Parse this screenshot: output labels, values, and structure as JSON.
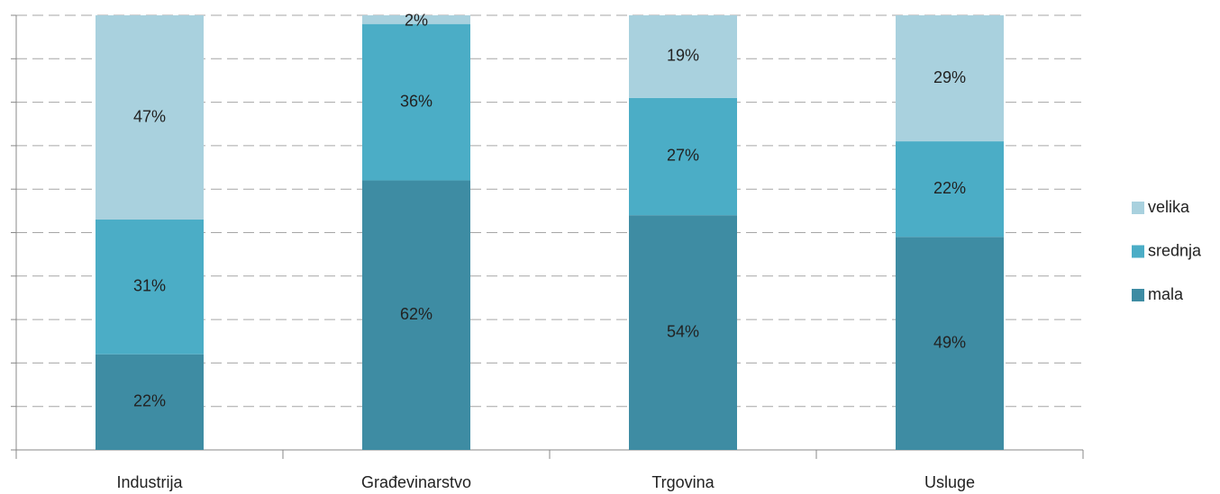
{
  "chart_data": {
    "type": "stacked_bar",
    "categories": [
      "Industrija",
      "Građevinarstvo",
      "Trgovina",
      "Usluge"
    ],
    "series": [
      {
        "name": "mala",
        "color": "#3e8ca3",
        "values": [
          22,
          62,
          54,
          49
        ],
        "value_labels": [
          "22%",
          "62%",
          "54%",
          "49%"
        ]
      },
      {
        "name": "srednja",
        "color": "#4badc6",
        "values": [
          31,
          36,
          27,
          22
        ],
        "value_labels": [
          "31%",
          "36%",
          "27%",
          "22%"
        ]
      },
      {
        "name": "velika",
        "color": "#a9d1de",
        "values": [
          47,
          2,
          19,
          29
        ],
        "value_labels": [
          "47%",
          "2%",
          "19%",
          "29%"
        ]
      }
    ],
    "ylim": [
      0,
      100
    ],
    "yticks": [
      0,
      10,
      20,
      30,
      40,
      50,
      60,
      70,
      80,
      90,
      100
    ],
    "grid": true,
    "legend": "right"
  }
}
